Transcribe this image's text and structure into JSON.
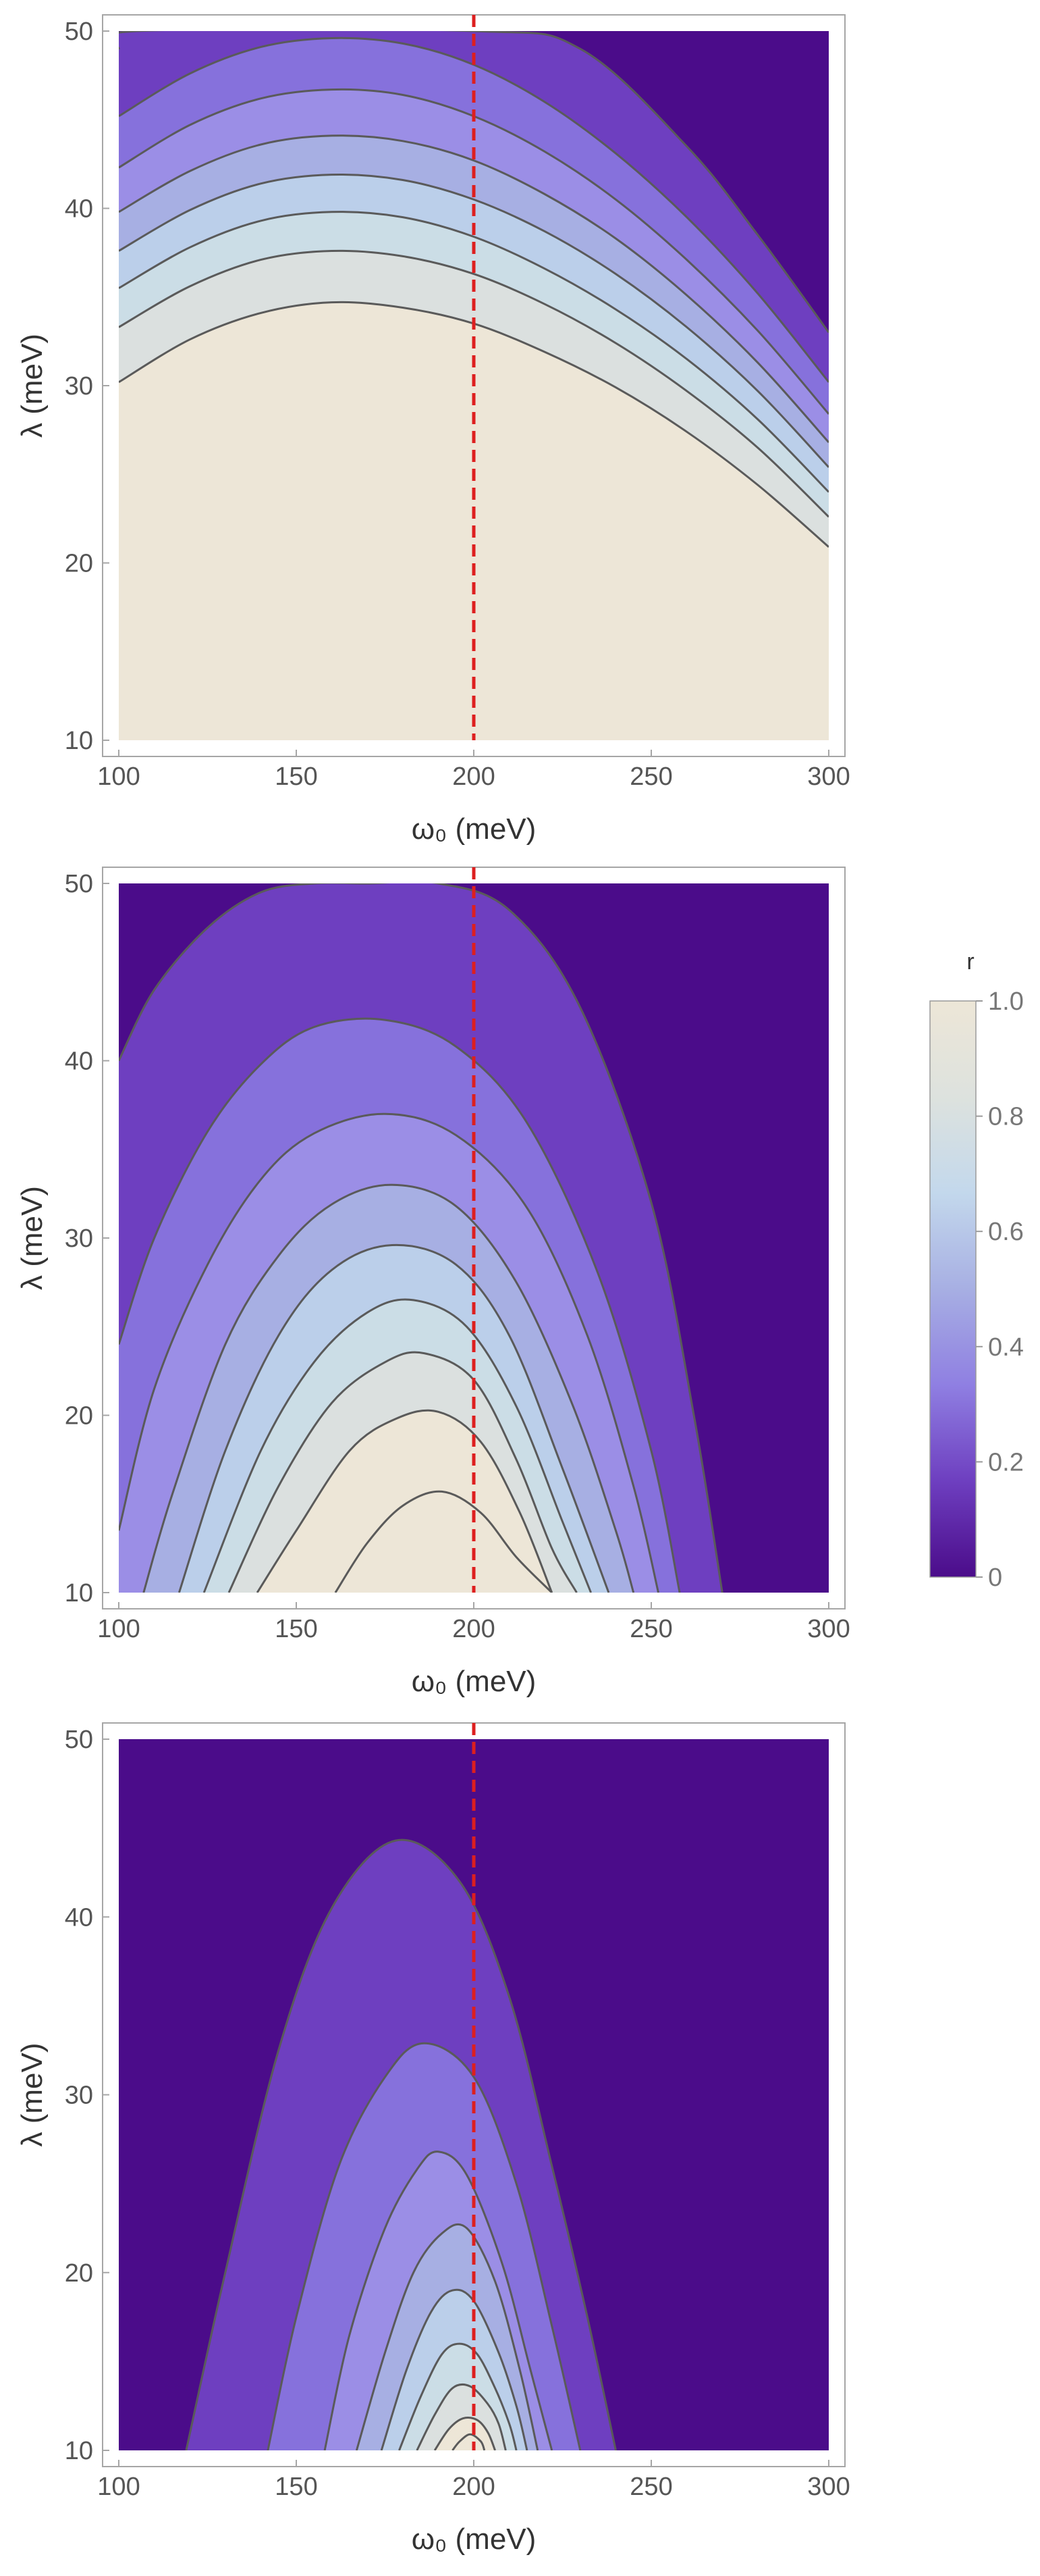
{
  "colors": {
    "levels": [
      "#4b0c8a",
      "#6e3fc0",
      "#8671dc",
      "#9b8ee6",
      "#a7afe3",
      "#bbcfea",
      "#cbdde6",
      "#dbe0df",
      "#ede6d7"
    ],
    "contour_line": "#5a5a5a",
    "reference_line": "#dd1f1f",
    "frame": "#a6a6a6",
    "tick_text": "#555555"
  },
  "chart_data": [
    {
      "type": "contour",
      "xlabel": "ω₀ (meV)",
      "ylabel": "λ (meV)",
      "xlim": [
        100,
        300
      ],
      "ylim": [
        10,
        50
      ],
      "xticks": [
        100,
        150,
        200,
        250,
        300
      ],
      "yticks": [
        10,
        20,
        30,
        40,
        50
      ],
      "x_tick_labels": [
        "100",
        "150",
        "200",
        "250",
        "300"
      ],
      "y_tick_labels": [
        "10",
        "20",
        "30",
        "40",
        "50"
      ],
      "reference_line_x": 200,
      "regions": [
        {
          "level": 0.9,
          "boundary_x": [
            100,
            300
          ],
          "boundary_y": [
            10,
            10
          ],
          "upper_x": [
            100,
            120,
            140,
            160,
            180,
            200,
            220,
            240,
            260,
            280,
            300
          ],
          "upper_y": [
            30.2,
            32.6,
            34.1,
            34.7,
            34.4,
            33.5,
            31.9,
            29.9,
            27.4,
            24.4,
            20.9
          ]
        },
        {
          "level": 0.8,
          "curve_x": [
            100,
            120,
            140,
            160,
            180,
            200,
            220,
            240,
            260,
            280,
            300
          ],
          "curve_y": [
            33.3,
            35.6,
            37.1,
            37.6,
            37.3,
            36.3,
            34.6,
            32.4,
            29.7,
            26.5,
            22.6
          ]
        },
        {
          "level": 0.7,
          "curve_x": [
            100,
            120,
            140,
            160,
            180,
            200,
            220,
            240,
            260,
            280,
            300
          ],
          "curve_y": [
            35.5,
            37.8,
            39.3,
            39.8,
            39.5,
            38.4,
            36.6,
            34.3,
            31.5,
            28.1,
            24.0
          ]
        },
        {
          "level": 0.6,
          "curve_x": [
            100,
            120,
            140,
            160,
            180,
            200,
            220,
            240,
            260,
            280,
            300
          ],
          "curve_y": [
            37.6,
            39.9,
            41.4,
            41.9,
            41.6,
            40.5,
            38.7,
            36.3,
            33.3,
            29.7,
            25.4
          ]
        },
        {
          "level": 0.5,
          "curve_x": [
            100,
            120,
            140,
            160,
            180,
            200,
            220,
            240,
            260,
            280,
            300
          ],
          "curve_y": [
            39.8,
            42.1,
            43.6,
            44.1,
            43.8,
            42.7,
            40.8,
            38.3,
            35.1,
            31.3,
            26.8
          ]
        },
        {
          "level": 0.4,
          "curve_x": [
            100,
            120,
            140,
            160,
            180,
            200,
            220,
            240,
            260,
            280,
            300
          ],
          "curve_y": [
            42.3,
            44.7,
            46.2,
            46.7,
            46.4,
            45.2,
            43.2,
            40.5,
            37.1,
            33.1,
            28.4
          ]
        },
        {
          "level": 0.3,
          "curve_x": [
            100,
            120,
            140,
            160,
            180,
            200,
            220,
            240,
            260,
            280,
            300
          ],
          "curve_y": [
            45.2,
            47.6,
            49.1,
            49.6,
            49.3,
            48.1,
            46.0,
            43.1,
            39.5,
            35.2,
            30.2
          ]
        },
        {
          "level": 0.2,
          "curve_x": [
            100,
            105,
            200,
            230,
            260,
            280,
            300
          ],
          "curve_y": [
            49.0,
            50,
            50,
            49.0,
            43.5,
            38.5,
            33.0
          ]
        }
      ]
    },
    {
      "type": "contour",
      "xlabel": "ω₀ (meV)",
      "ylabel": "λ (meV)",
      "xlim": [
        100,
        300
      ],
      "ylim": [
        10,
        50
      ],
      "xticks": [
        100,
        150,
        200,
        250,
        300
      ],
      "yticks": [
        10,
        20,
        30,
        40,
        50
      ],
      "x_tick_labels": [
        "100",
        "150",
        "200",
        "250",
        "300"
      ],
      "y_tick_labels": [
        "10",
        "20",
        "30",
        "40",
        "50"
      ],
      "reference_line_x": 200,
      "arches": [
        {
          "level": 0.1,
          "x": [
            100,
            110,
            125,
            140,
            155,
            170,
            190,
            210,
            230,
            250,
            262,
            270
          ],
          "y": [
            40.0,
            44.0,
            47.5,
            49.5,
            50,
            50,
            50,
            48.5,
            43.0,
            32.0,
            20.0,
            10
          ]
        },
        {
          "level": 0.2,
          "x": [
            100,
            110,
            125,
            140,
            155,
            175,
            195,
            215,
            235,
            250,
            258
          ],
          "y": [
            24.0,
            30.0,
            36.0,
            39.8,
            41.9,
            42.3,
            40.8,
            36.5,
            28.0,
            18.0,
            10
          ]
        },
        {
          "level": 0.3,
          "x": [
            100,
            110,
            125,
            140,
            155,
            175,
            195,
            215,
            232,
            245,
            252
          ],
          "y": [
            13.5,
            21.5,
            28.5,
            33.3,
            35.9,
            37.0,
            35.8,
            31.7,
            24.5,
            16.0,
            10
          ]
        },
        {
          "level": 0.4,
          "x": [
            107,
            115,
            130,
            145,
            160,
            177,
            195,
            212,
            228,
            240,
            245
          ],
          "y": [
            10,
            15.5,
            24.0,
            29.0,
            31.9,
            33.0,
            31.8,
            27.5,
            20.5,
            13.5,
            10
          ]
        },
        {
          "level": 0.5,
          "x": [
            117,
            130,
            145,
            160,
            177,
            195,
            210,
            225,
            238
          ],
          "y": [
            10,
            18.0,
            24.5,
            28.2,
            29.6,
            28.5,
            24.5,
            17.0,
            10
          ]
        },
        {
          "level": 0.6,
          "x": [
            124,
            140,
            155,
            170,
            183,
            198,
            212,
            225,
            233
          ],
          "y": [
            10,
            18.0,
            23.0,
            25.8,
            26.5,
            25.0,
            20.5,
            14.0,
            10
          ]
        },
        {
          "level": 0.7,
          "x": [
            131,
            145,
            160,
            175,
            186,
            200,
            212,
            222,
            229
          ],
          "y": [
            10,
            16.0,
            20.7,
            23.0,
            23.5,
            22.0,
            17.5,
            12.5,
            10
          ]
        },
        {
          "level": 0.8,
          "x": [
            139,
            150,
            165,
            178,
            190,
            202,
            213,
            222
          ],
          "y": [
            10,
            13.5,
            18.0,
            19.8,
            20.2,
            18.5,
            14.5,
            10
          ]
        },
        {
          "level": 0.9,
          "x": [
            161,
            170,
            180,
            191,
            202,
            212,
            222
          ],
          "y": [
            10,
            12.8,
            14.9,
            15.7,
            14.5,
            12.0,
            10
          ]
        }
      ]
    },
    {
      "type": "contour",
      "xlabel": "ω₀ (meV)",
      "ylabel": "λ (meV)",
      "xlim": [
        100,
        300
      ],
      "ylim": [
        10,
        50
      ],
      "xticks": [
        100,
        150,
        200,
        250,
        300
      ],
      "yticks": [
        10,
        20,
        30,
        40,
        50
      ],
      "x_tick_labels": [
        "100",
        "150",
        "200",
        "250",
        "300"
      ],
      "y_tick_labels": [
        "10",
        "20",
        "30",
        "40",
        "50"
      ],
      "reference_line_x": 200,
      "arches": [
        {
          "level": 0.1,
          "x": [
            119,
            130,
            145,
            160,
            178,
            196,
            210,
            222,
            232,
            240
          ],
          "y": [
            10,
            20.0,
            32.5,
            40.5,
            44.3,
            42.0,
            35.5,
            26.0,
            17.5,
            10
          ]
        },
        {
          "level": 0.2,
          "x": [
            142,
            150,
            162,
            175,
            186,
            200,
            212,
            222,
            230
          ],
          "y": [
            10,
            17.5,
            26.0,
            31.0,
            32.9,
            31.0,
            25.0,
            17.0,
            10
          ]
        },
        {
          "level": 0.3,
          "x": [
            158,
            165,
            175,
            184,
            190,
            198,
            208,
            216,
            222
          ],
          "y": [
            10,
            16.5,
            22.5,
            25.8,
            26.8,
            25.5,
            20.5,
            14.5,
            10
          ]
        },
        {
          "level": 0.4,
          "x": [
            167,
            175,
            183,
            191,
            198,
            206,
            213,
            218
          ],
          "y": [
            10,
            15.5,
            20.0,
            22.2,
            22.5,
            19.5,
            14.5,
            10
          ]
        },
        {
          "level": 0.5,
          "x": [
            174,
            181,
            188,
            194,
            200,
            207,
            212,
            215
          ],
          "y": [
            10,
            14.5,
            17.8,
            19.0,
            18.4,
            15.5,
            12.5,
            10
          ]
        },
        {
          "level": 0.6,
          "x": [
            179,
            185,
            191,
            196,
            201,
            206,
            210,
            212
          ],
          "y": [
            10,
            13.0,
            15.4,
            16.0,
            15.4,
            13.5,
            11.5,
            10
          ]
        },
        {
          "level": 0.7,
          "x": [
            184,
            189,
            194,
            199,
            204,
            207,
            209
          ],
          "y": [
            10,
            12.0,
            13.5,
            13.6,
            12.6,
            11.5,
            10
          ]
        },
        {
          "level": 0.8,
          "x": [
            189,
            193,
            197,
            201,
            204,
            206
          ],
          "y": [
            10,
            11.2,
            11.8,
            11.7,
            11.0,
            10
          ]
        },
        {
          "level": 0.9,
          "x": [
            194,
            196,
            199,
            202,
            203
          ],
          "y": [
            10,
            10.5,
            10.9,
            10.5,
            10
          ]
        }
      ]
    }
  ],
  "colorbar": {
    "title": "r",
    "range": [
      0,
      1
    ],
    "tick_values": [
      0,
      0.2,
      0.4,
      0.6,
      0.8,
      1.0
    ],
    "tick_labels": [
      "0",
      "0.2",
      "0.4",
      "0.6",
      "0.8",
      "1.0"
    ]
  }
}
